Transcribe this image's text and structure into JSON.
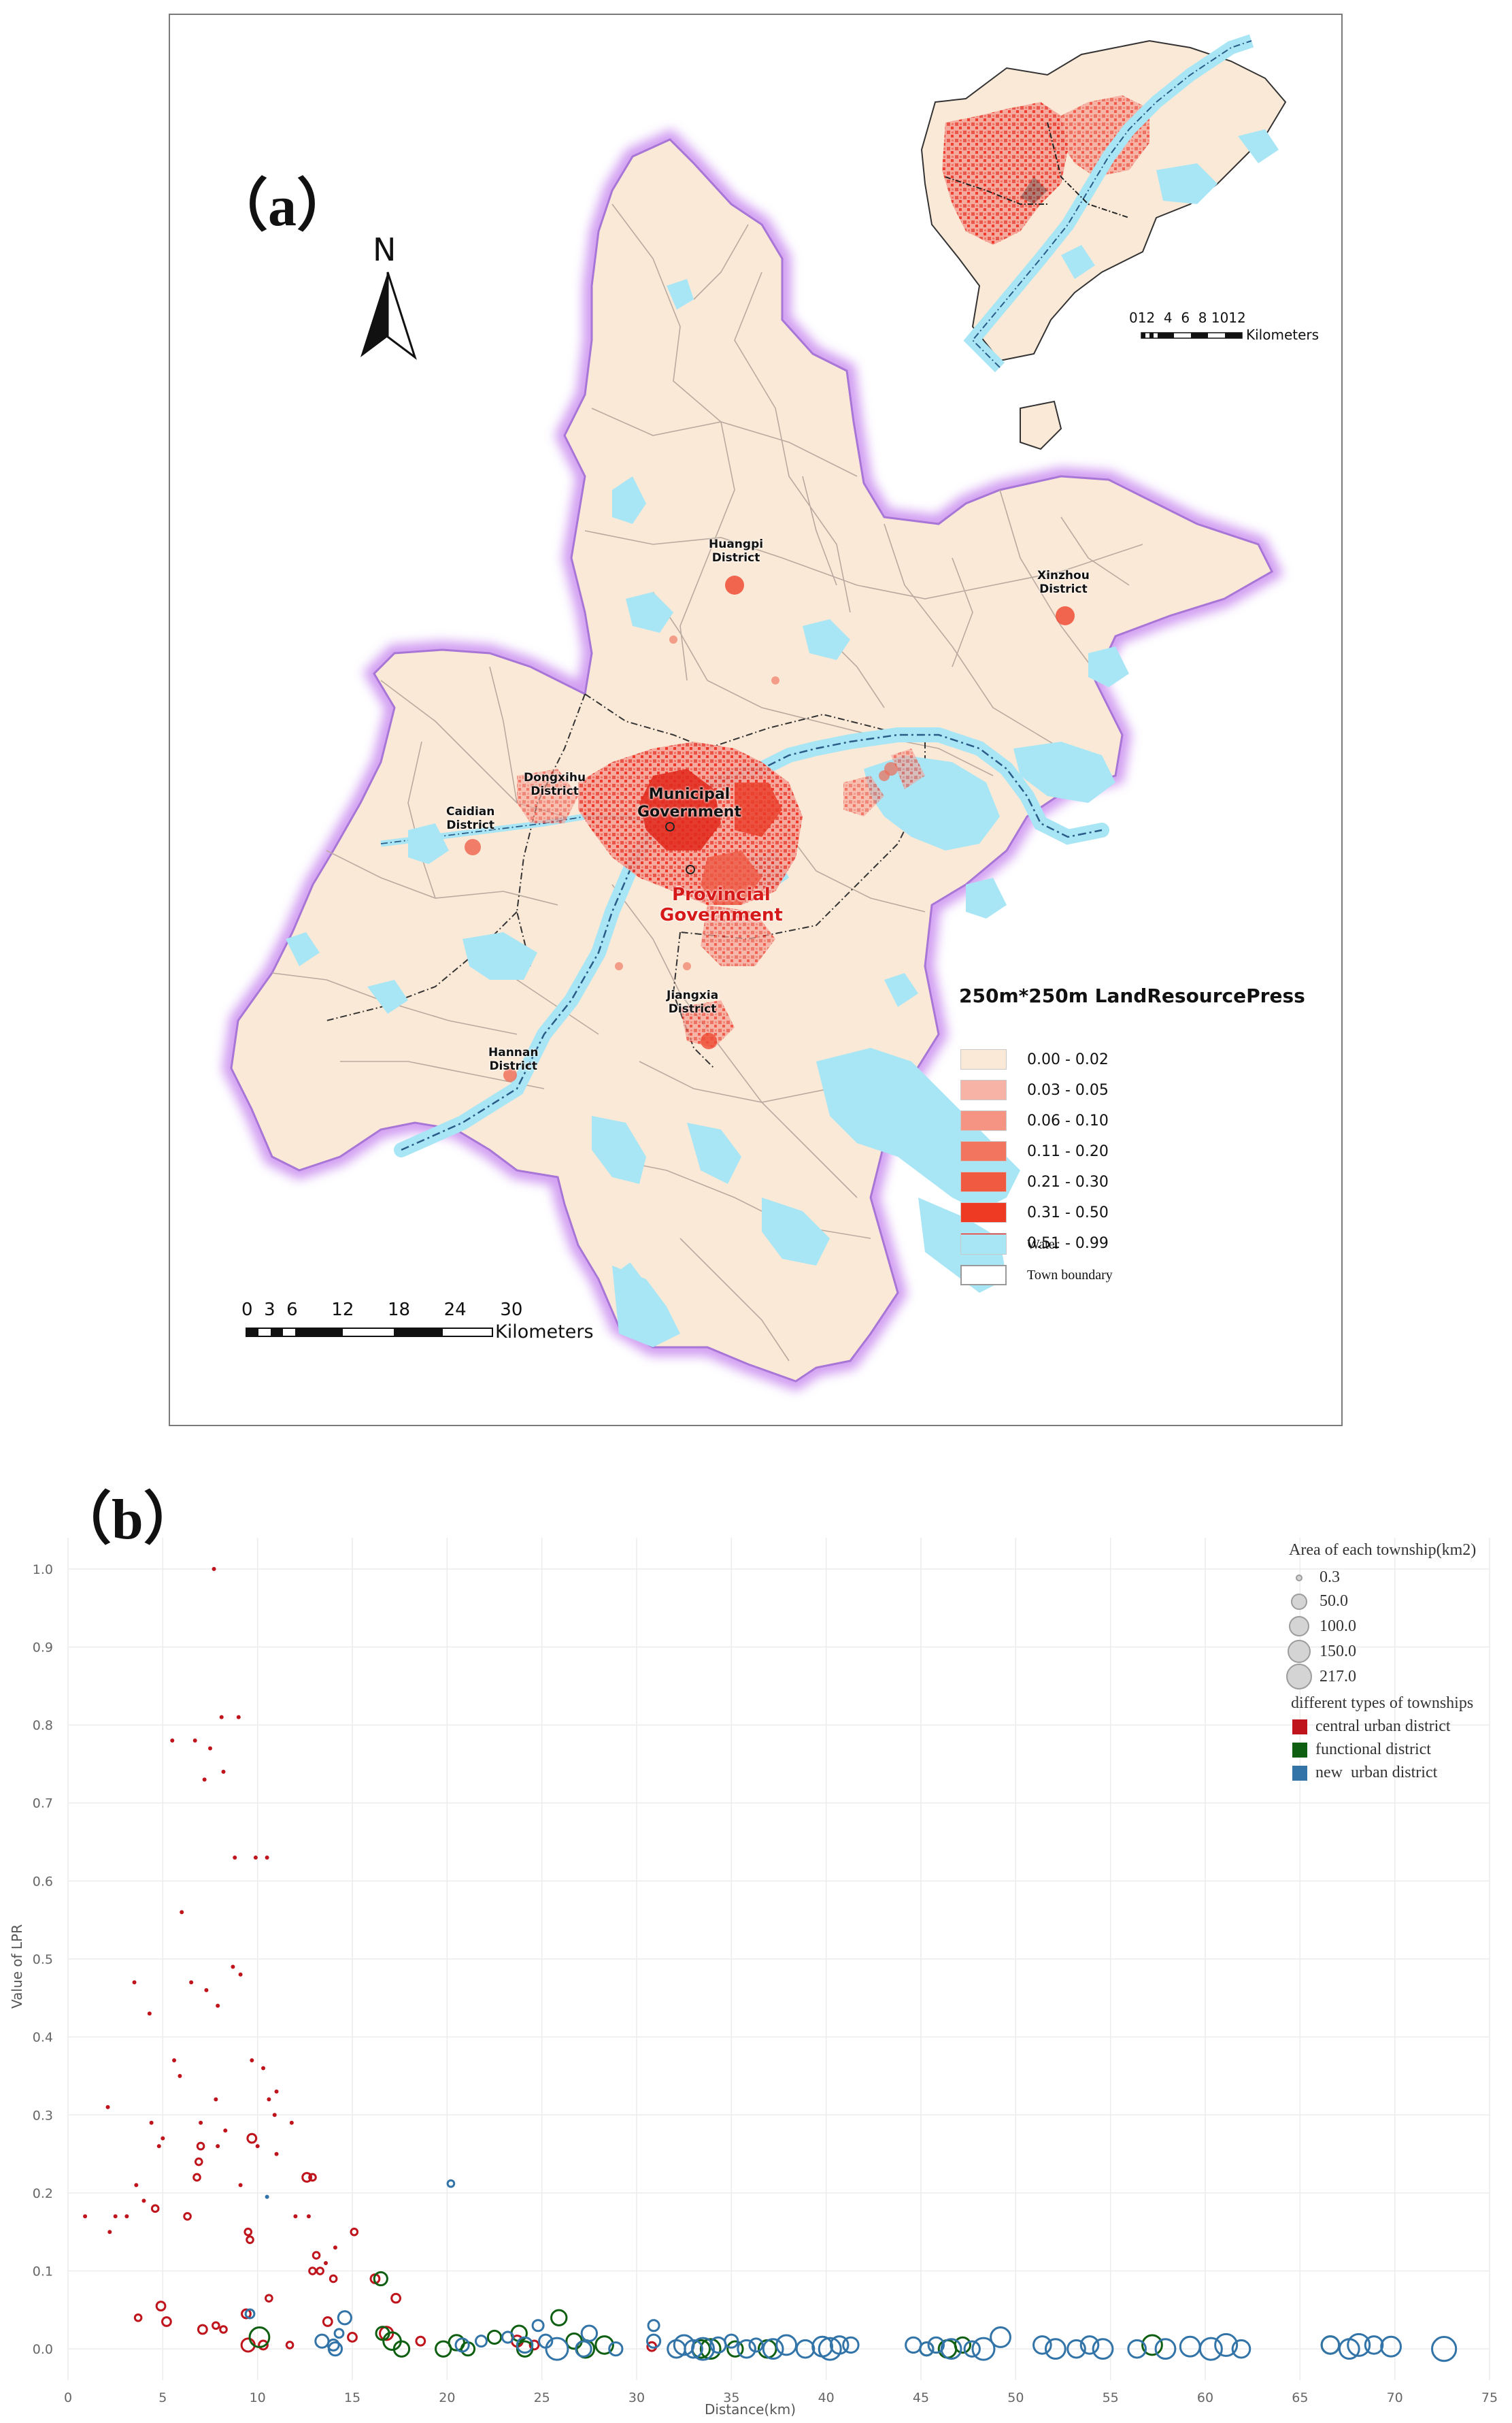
{
  "panel_labels": {
    "a": "（a）",
    "b": "（b）"
  },
  "map": {
    "north": "N",
    "places": {
      "huangpi": "Huangpi\nDistrict",
      "xinzhou": "Xinzhou\nDistrict",
      "dongxihu": "Dongxihu\nDistrict",
      "caidian": "Caidian\nDistrict",
      "municipal": "Municipal\nGovernment",
      "provincial": "Provincial\nGovernment",
      "jiangxia": "Jiangxia\nDistrict",
      "hannan": "Hannan\nDistrict"
    },
    "scale": {
      "ticks": "0  3  6      12      18      24      30",
      "unit": "Kilometers"
    },
    "inset_scale": {
      "ticks": "012  4  6  8 1012",
      "unit": "Kilometers"
    },
    "legend": {
      "title": "250m*250m LandResourcePress",
      "classes": [
        {
          "label": "0.00 - 0.02",
          "color": "#fbe9d7"
        },
        {
          "label": "0.03 - 0.05",
          "color": "#f7b3a6"
        },
        {
          "label": "0.06 - 0.10",
          "color": "#f59483"
        },
        {
          "label": "0.11 - 0.20",
          "color": "#f2765f"
        },
        {
          "label": "0.21 - 0.30",
          "color": "#ef5a41"
        },
        {
          "label": "0.31 - 0.50",
          "color": "#ee3a22"
        },
        {
          "label": "0.51 - 0.99",
          "color": "#ea0f0f"
        }
      ],
      "water": {
        "label": "Water",
        "color": "#a8e6f5"
      },
      "boundary": {
        "label": "Town boundary"
      }
    }
  },
  "chart_data": {
    "type": "scatter",
    "xlabel": "Distance(km)",
    "ylabel": "Value of LPR",
    "xlim": [
      0,
      75
    ],
    "ylim": [
      -0.04,
      1.04
    ],
    "x_ticks": [
      0,
      5,
      10,
      15,
      20,
      25,
      30,
      35,
      40,
      45,
      50,
      55,
      60,
      65,
      70,
      75
    ],
    "y_ticks": [
      0.0,
      0.1,
      0.2,
      0.3,
      0.4,
      0.5,
      0.6,
      0.7,
      0.8,
      0.9,
      1.0
    ],
    "grid": true,
    "legend_placement": "top-right",
    "size_legend": {
      "title": "Area of each township(km2)",
      "values": [
        0.3,
        50.0,
        100.0,
        150.0,
        217.0
      ]
    },
    "color_legend": {
      "title": "different types of townships"
    },
    "series": [
      {
        "name": "central urban district",
        "color": "#c0141c",
        "points": [
          [
            7.7,
            1.0,
            1
          ],
          [
            5.5,
            0.78,
            1
          ],
          [
            6.7,
            0.78,
            1
          ],
          [
            7.5,
            0.77,
            1
          ],
          [
            8.1,
            0.81,
            1
          ],
          [
            9.0,
            0.81,
            1
          ],
          [
            8.2,
            0.74,
            1
          ],
          [
            7.2,
            0.73,
            1
          ],
          [
            8.8,
            0.63,
            1
          ],
          [
            9.9,
            0.63,
            1
          ],
          [
            10.5,
            0.63,
            1
          ],
          [
            6.0,
            0.56,
            1
          ],
          [
            8.7,
            0.49,
            1
          ],
          [
            9.1,
            0.48,
            1
          ],
          [
            6.5,
            0.47,
            1
          ],
          [
            7.3,
            0.46,
            1
          ],
          [
            3.5,
            0.47,
            1
          ],
          [
            4.3,
            0.43,
            1
          ],
          [
            7.9,
            0.44,
            1
          ],
          [
            5.6,
            0.37,
            1
          ],
          [
            5.9,
            0.35,
            1
          ],
          [
            9.7,
            0.37,
            1
          ],
          [
            10.3,
            0.36,
            1
          ],
          [
            11.0,
            0.33,
            1
          ],
          [
            7.8,
            0.32,
            1
          ],
          [
            10.6,
            0.32,
            1
          ],
          [
            2.1,
            0.31,
            1
          ],
          [
            4.4,
            0.29,
            1
          ],
          [
            7.0,
            0.29,
            1
          ],
          [
            10.9,
            0.3,
            1
          ],
          [
            11.8,
            0.29,
            1
          ],
          [
            8.3,
            0.28,
            1
          ],
          [
            5.0,
            0.27,
            1
          ],
          [
            9.7,
            0.27,
            4
          ],
          [
            4.8,
            0.26,
            1
          ],
          [
            10.0,
            0.26,
            1
          ],
          [
            7.0,
            0.26,
            3
          ],
          [
            7.9,
            0.26,
            1
          ],
          [
            11.0,
            0.25,
            1
          ],
          [
            6.9,
            0.24,
            3
          ],
          [
            6.8,
            0.22,
            3
          ],
          [
            9.1,
            0.21,
            1
          ],
          [
            3.6,
            0.21,
            1
          ],
          [
            12.6,
            0.22,
            4
          ],
          [
            12.9,
            0.22,
            3
          ],
          [
            4.6,
            0.18,
            3
          ],
          [
            2.5,
            0.17,
            1
          ],
          [
            0.9,
            0.17,
            1
          ],
          [
            12.7,
            0.17,
            1
          ],
          [
            3.1,
            0.17,
            1
          ],
          [
            6.3,
            0.17,
            3
          ],
          [
            12.0,
            0.17,
            1
          ],
          [
            2.2,
            0.15,
            1
          ],
          [
            4.0,
            0.19,
            1
          ],
          [
            15.1,
            0.15,
            3
          ],
          [
            9.5,
            0.15,
            3
          ],
          [
            9.6,
            0.14,
            3
          ],
          [
            14.1,
            0.13,
            1
          ],
          [
            13.1,
            0.12,
            3
          ],
          [
            13.6,
            0.11,
            1
          ],
          [
            12.9,
            0.1,
            3
          ],
          [
            13.3,
            0.1,
            3
          ],
          [
            14.0,
            0.09,
            3
          ],
          [
            16.2,
            0.09,
            4
          ],
          [
            10.6,
            0.065,
            3
          ],
          [
            17.3,
            0.065,
            4
          ],
          [
            4.9,
            0.055,
            4
          ],
          [
            3.7,
            0.04,
            3
          ],
          [
            5.2,
            0.035,
            4
          ],
          [
            7.1,
            0.025,
            4
          ],
          [
            7.8,
            0.03,
            3
          ],
          [
            8.2,
            0.025,
            3
          ],
          [
            13.7,
            0.035,
            4
          ],
          [
            16.8,
            0.02,
            6
          ],
          [
            18.6,
            0.01,
            4
          ],
          [
            9.4,
            0.045,
            4
          ],
          [
            9.5,
            0.005,
            6
          ],
          [
            10.3,
            0.005,
            4
          ],
          [
            15.0,
            0.015,
            4
          ],
          [
            11.7,
            0.005,
            3
          ],
          [
            23.7,
            0.01,
            5
          ],
          [
            24.6,
            0.005,
            4
          ],
          [
            30.8,
            0.003,
            4
          ]
        ]
      },
      {
        "name": "functional district",
        "color": "#0f5f12",
        "points": [
          [
            10.1,
            0.015,
            9
          ],
          [
            16.5,
            0.09,
            6
          ],
          [
            16.6,
            0.02,
            6
          ],
          [
            17.1,
            0.01,
            8
          ],
          [
            17.6,
            0.0,
            7
          ],
          [
            19.8,
            0.0,
            7
          ],
          [
            20.5,
            0.008,
            7
          ],
          [
            21.1,
            0.0,
            6
          ],
          [
            22.5,
            0.015,
            6
          ],
          [
            23.8,
            0.02,
            7
          ],
          [
            24.1,
            0.0,
            7
          ],
          [
            25.9,
            0.04,
            7
          ],
          [
            26.7,
            0.01,
            7
          ],
          [
            27.3,
            0.0,
            8
          ],
          [
            28.3,
            0.005,
            8
          ],
          [
            33.4,
            0.0,
            8
          ],
          [
            33.9,
            0.0,
            9
          ],
          [
            35.2,
            0.0,
            7
          ],
          [
            36.9,
            0.0,
            8
          ],
          [
            45.3,
            0.0,
            6
          ],
          [
            46.4,
            0.0,
            8
          ],
          [
            47.2,
            0.005,
            7
          ],
          [
            57.2,
            0.005,
            9
          ],
          [
            66.6,
            0.005,
            8
          ]
        ]
      },
      {
        "name": "new  urban district",
        "color": "#3274a8",
        "points": [
          [
            20.2,
            0.212,
            3
          ],
          [
            10.5,
            0.195,
            1
          ],
          [
            9.6,
            0.045,
            4
          ],
          [
            13.4,
            0.01,
            6
          ],
          [
            14.0,
            0.005,
            5
          ],
          [
            14.3,
            0.02,
            4
          ],
          [
            14.6,
            0.04,
            6
          ],
          [
            14.1,
            0.0,
            6
          ],
          [
            20.8,
            0.005,
            6
          ],
          [
            21.8,
            0.01,
            5
          ],
          [
            23.2,
            0.015,
            5
          ],
          [
            24.1,
            0.005,
            7
          ],
          [
            24.8,
            0.03,
            5
          ],
          [
            25.2,
            0.01,
            6
          ],
          [
            25.8,
            0.0,
            10
          ],
          [
            27.2,
            0.0,
            7
          ],
          [
            27.5,
            0.02,
            7
          ],
          [
            28.9,
            0.0,
            6
          ],
          [
            30.9,
            0.03,
            5
          ],
          [
            30.9,
            0.01,
            6
          ],
          [
            32.1,
            0.0,
            8
          ],
          [
            32.5,
            0.005,
            9
          ],
          [
            33.0,
            0.0,
            8
          ],
          [
            33.5,
            0.0,
            10
          ],
          [
            34.3,
            0.005,
            7
          ],
          [
            35.0,
            0.01,
            6
          ],
          [
            35.8,
            0.0,
            8
          ],
          [
            36.3,
            0.005,
            6
          ],
          [
            37.2,
            0.0,
            9
          ],
          [
            37.9,
            0.005,
            9
          ],
          [
            38.9,
            0.0,
            8
          ],
          [
            39.8,
            0.003,
            9
          ],
          [
            40.2,
            0.0,
            10
          ],
          [
            40.7,
            0.005,
            8
          ],
          [
            41.3,
            0.005,
            7
          ],
          [
            44.6,
            0.005,
            7
          ],
          [
            45.3,
            0.0,
            6
          ],
          [
            45.8,
            0.005,
            7
          ],
          [
            46.6,
            0.0,
            9
          ],
          [
            47.7,
            0.0,
            7
          ],
          [
            48.3,
            0.0,
            10
          ],
          [
            49.2,
            0.015,
            9
          ],
          [
            51.4,
            0.005,
            8
          ],
          [
            52.1,
            0.0,
            9
          ],
          [
            53.2,
            0.0,
            8
          ],
          [
            53.9,
            0.005,
            8
          ],
          [
            54.6,
            0.0,
            9
          ],
          [
            56.4,
            0.0,
            8
          ],
          [
            57.9,
            0.0,
            9
          ],
          [
            59.2,
            0.003,
            9
          ],
          [
            60.3,
            0.0,
            10
          ],
          [
            61.1,
            0.005,
            10
          ],
          [
            61.9,
            0.0,
            8
          ],
          [
            66.6,
            0.005,
            8
          ],
          [
            67.6,
            0.0,
            9
          ],
          [
            68.1,
            0.005,
            10
          ],
          [
            68.9,
            0.005,
            8
          ],
          [
            69.8,
            0.003,
            9
          ],
          [
            72.6,
            0.0,
            11
          ]
        ]
      }
    ]
  }
}
